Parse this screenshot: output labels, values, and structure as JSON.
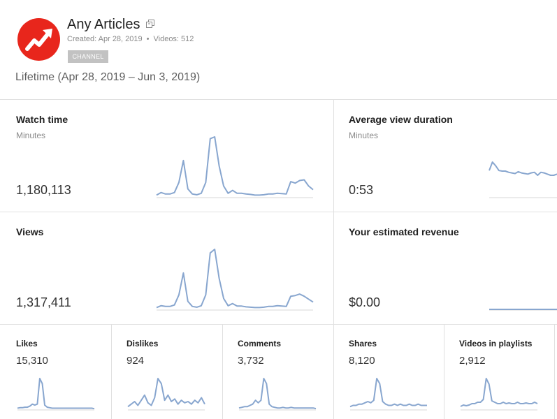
{
  "channel": {
    "name": "Any Articles",
    "created": "Created: Apr 28, 2019",
    "separator": "•",
    "videos": "Videos: 512",
    "badge": "CHANNEL",
    "link_icon": "external-link-icon",
    "logo_icon": "trending-arrow-icon"
  },
  "period": "Lifetime (Apr 28, 2019 – Jun 3, 2019)",
  "colors": {
    "spark_line": "#88a6cf",
    "baseline": "#d7d7d7",
    "logo_bg": "#e8261c"
  },
  "cards": {
    "watch_time": {
      "title": "Watch time",
      "subtitle": "Minutes",
      "value": "1,180,113"
    },
    "avg_view_duration": {
      "title": "Average view duration",
      "subtitle": "Minutes",
      "value": "0:53"
    },
    "views": {
      "title": "Views",
      "value": "1,317,411"
    },
    "revenue": {
      "title": "Your estimated revenue",
      "value": "$0.00"
    }
  },
  "small_cards": [
    {
      "title": "Likes",
      "value": "15,310"
    },
    {
      "title": "Dislikes",
      "value": "924"
    },
    {
      "title": "Comments",
      "value": "3,732"
    },
    {
      "title": "Shares",
      "value": "8,120"
    },
    {
      "title": "Videos in playlists",
      "value": "2,912"
    }
  ],
  "sparklines": {
    "watch_time": [
      5,
      12,
      8,
      8,
      12,
      40,
      100,
      22,
      8,
      6,
      10,
      40,
      160,
      165,
      85,
      30,
      10,
      18,
      10,
      10,
      8,
      7,
      5,
      5,
      6,
      8,
      8,
      10,
      9,
      8,
      42,
      38,
      45,
      47,
      30,
      20
    ],
    "avg_view_duration": [
      44,
      58,
      52,
      44,
      43,
      43,
      41,
      40,
      39,
      42,
      40,
      39,
      38,
      40,
      41,
      36,
      41,
      40,
      38,
      36,
      36,
      38
    ],
    "views": [
      5,
      10,
      8,
      8,
      12,
      40,
      100,
      22,
      8,
      6,
      10,
      40,
      155,
      165,
      85,
      30,
      10,
      16,
      9,
      9,
      7,
      6,
      5,
      5,
      6,
      8,
      8,
      10,
      9,
      8,
      36,
      38,
      42,
      36,
      28,
      20
    ],
    "revenue": [
      0,
      0,
      0,
      0,
      0,
      0,
      0,
      0,
      0,
      0,
      0,
      0,
      0,
      0,
      0,
      0,
      0,
      0
    ],
    "likes": [
      2,
      3,
      3,
      4,
      4,
      6,
      10,
      8,
      10,
      60,
      50,
      8,
      4,
      3,
      2,
      2,
      2,
      2,
      2,
      2,
      2,
      2,
      2,
      2,
      2,
      2,
      2,
      2,
      2,
      2,
      2,
      1
    ],
    "dislikes": [
      4,
      8,
      12,
      6,
      14,
      22,
      10,
      6,
      18,
      48,
      40,
      14,
      22,
      12,
      16,
      8,
      14,
      10,
      12,
      8,
      14,
      10,
      18,
      8
    ],
    "comments": [
      2,
      3,
      4,
      4,
      6,
      8,
      14,
      10,
      14,
      48,
      40,
      8,
      4,
      3,
      2,
      2,
      3,
      2,
      2,
      3,
      2,
      2,
      2,
      2,
      2,
      2,
      2,
      2,
      1
    ],
    "shares": [
      4,
      6,
      6,
      8,
      8,
      10,
      12,
      10,
      14,
      48,
      40,
      12,
      8,
      6,
      6,
      8,
      6,
      8,
      6,
      6,
      8,
      6,
      6,
      8,
      6,
      6,
      6
    ],
    "playlists": [
      4,
      6,
      5,
      6,
      8,
      8,
      10,
      10,
      14,
      44,
      36,
      12,
      10,
      8,
      8,
      10,
      8,
      9,
      8,
      8,
      10,
      8,
      8,
      9,
      8,
      8,
      10,
      8
    ]
  }
}
